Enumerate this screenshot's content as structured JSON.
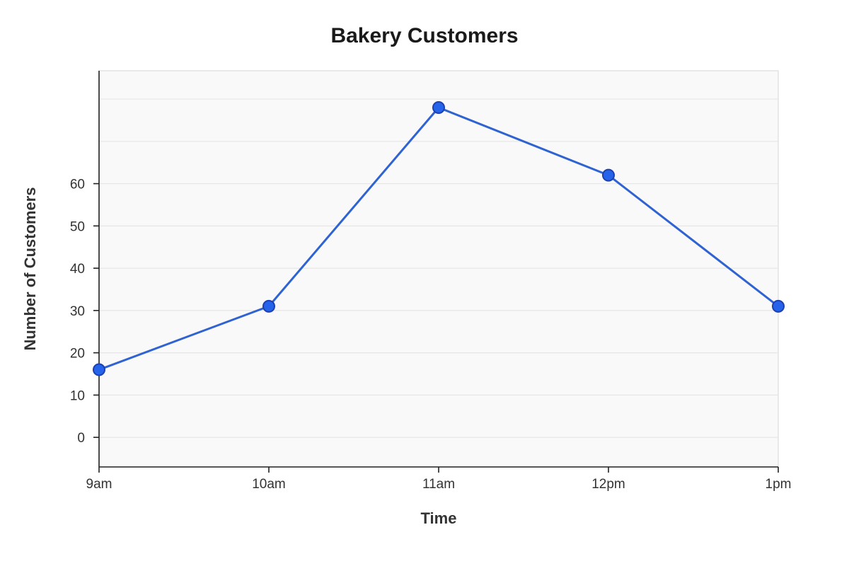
{
  "chart_data": {
    "type": "line",
    "title": "Bakery Customers",
    "xlabel": "Time",
    "ylabel": "Number of Customers",
    "categories": [
      "9am",
      "10am",
      "11am",
      "12pm",
      "1pm"
    ],
    "series": [
      {
        "values": [
          16,
          31,
          78,
          62,
          31
        ]
      }
    ],
    "yticks": [
      0,
      10,
      20,
      30,
      40,
      50,
      60
    ],
    "ylim": [
      -7,
      86.7
    ],
    "grid": true,
    "legend": "none",
    "colors": {
      "line": "#2f63d1",
      "point_fill": "#2563eb",
      "point_stroke": "#1e40af",
      "plot_background": "#f9f9f9"
    }
  }
}
